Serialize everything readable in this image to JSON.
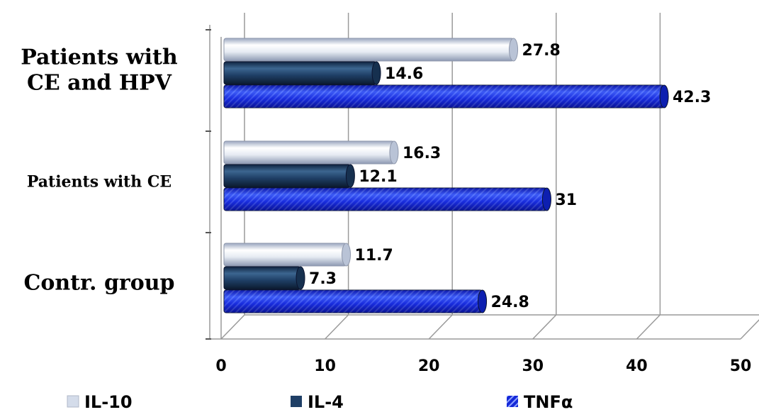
{
  "chart_data": {
    "type": "bar",
    "orientation": "horizontal",
    "style": "3d-cylinder",
    "categories": [
      "Patients with CE and HPV",
      "Patients with CE",
      "Contr. group"
    ],
    "category_lines": [
      [
        "Patients with",
        "CE and HPV"
      ],
      [
        "Patients with CE"
      ],
      [
        "Contr. group"
      ]
    ],
    "series": [
      {
        "name": "IL-10",
        "values": [
          27.8,
          16.3,
          11.7
        ],
        "color": "#d4dcea"
      },
      {
        "name": "IL-4",
        "values": [
          14.6,
          12.1,
          7.3
        ],
        "color": "#1f3f66"
      },
      {
        "name": "TNFα",
        "values": [
          42.3,
          31,
          24.8
        ],
        "color": "#1428d8"
      }
    ],
    "xlim": [
      0,
      50
    ],
    "xticks": [
      0,
      10,
      20,
      30,
      40,
      50
    ],
    "xticklabels": [
      "0",
      "10",
      "20",
      "30",
      "40",
      "50"
    ],
    "grid": true,
    "legend_position": "bottom",
    "title": "",
    "xlabel": "",
    "ylabel": ""
  }
}
